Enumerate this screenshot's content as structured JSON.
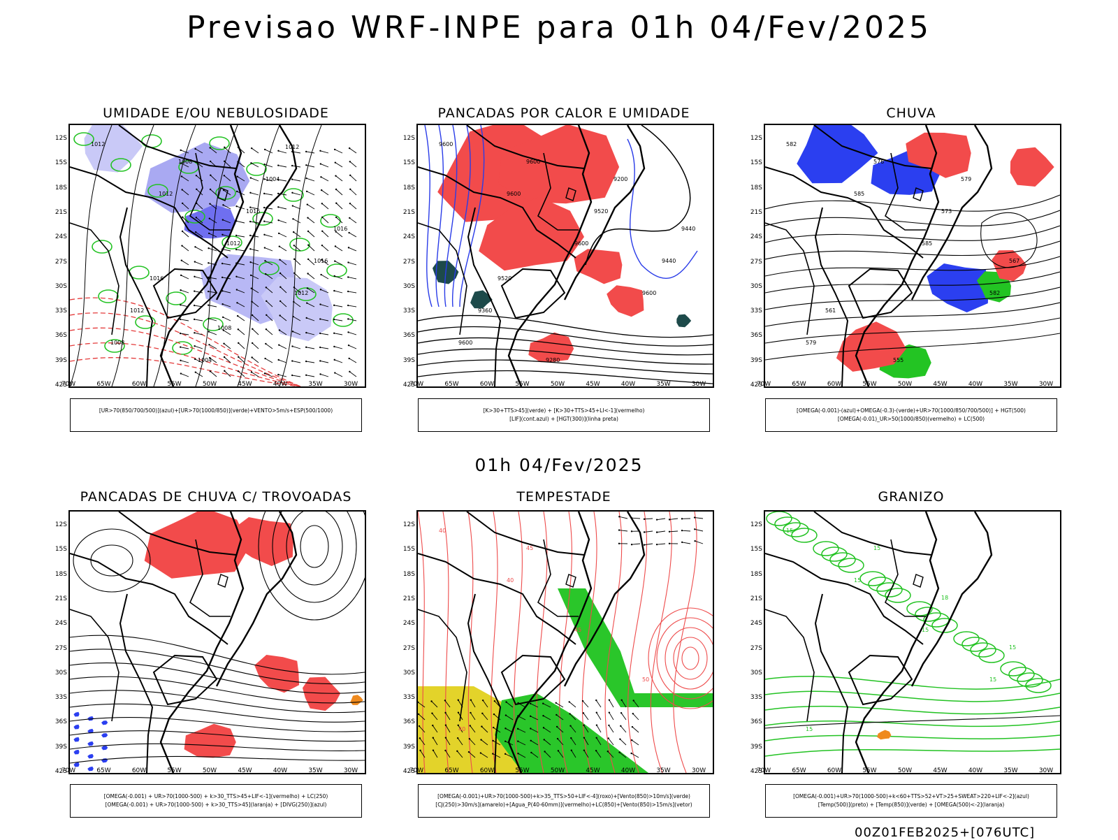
{
  "header": {
    "title": "Previsao WRF-INPE  para 01h 04/Fev/2025"
  },
  "middle_title": "01h 04/Fev/2025",
  "footer": "00Z01FEB2025+[076UTC]",
  "axes": {
    "lat_labels": [
      "12S",
      "15S",
      "18S",
      "21S",
      "24S",
      "27S",
      "30S",
      "33S",
      "36S",
      "39S",
      "42S"
    ],
    "lon_labels": [
      "70W",
      "65W",
      "60W",
      "55W",
      "50W",
      "45W",
      "40W",
      "35W",
      "30W"
    ]
  },
  "panels": [
    {
      "title": "UMIDADE E/OU NEBULOSIDADE",
      "legend": [
        "[UR>70(850/700/500)](azul)+[UR>70(1000/850)](verde)+VENTO>5m/s+ESP(500/1000)"
      ],
      "contour_labels": [
        "1012",
        "1012",
        "1012",
        "1012",
        "1008",
        "1008",
        "1016",
        "1016",
        "1012",
        "1004",
        "1004",
        "1016",
        "1016",
        "1008",
        "1012"
      ]
    },
    {
      "title": "PANCADAS POR CALOR E UMIDADE",
      "legend": [
        "[K>30+TTS>45](verde) + [K>30+TTS>45+LI<-1](vermelho)",
        "[LIF](cont.azul) + [HGT(300)](linha preta)"
      ],
      "contour_labels": [
        "9600",
        "9600",
        "9600",
        "9600",
        "9600",
        "9600",
        "9520",
        "9440",
        "9360",
        "9280",
        "9200",
        "9440",
        "9520"
      ]
    },
    {
      "title": "CHUVA",
      "legend": [
        "[OMEGA(-0.001)-(azul)+OMEGA(-0.3)-(verde)+UR>70(1000/850/700/500)] + HGT(500)",
        "[OMEGA(-0.01)_UR>50(1000/850)(vermelho) + LC(500)"
      ],
      "contour_labels": [
        "582",
        "585",
        "585",
        "582",
        "579",
        "576",
        "573",
        "567",
        "561",
        "555",
        "579"
      ]
    },
    {
      "title": "PANCADAS DE CHUVA C/ TROVOADAS",
      "legend": [
        "[OMEGA(-0.001) + UR>70(1000-500) + k>30_TTS>45+LIF<-1](vermelho) + LC(250)",
        "[OMEGA(-0.001) + UR>70(1000-500) + k>30_TTS>45](laranja) + [DIVG(250)](azul)"
      ],
      "contour_labels": []
    },
    {
      "title": "TEMPESTADE",
      "legend": [
        "[OMEGA(-0.001)+UR>70(1000-500)+k>35_TTS>50+LIF<-4](roxo)+[Vento(850)>10m/s](verde)",
        "[CJ(250)>30m/s](amarelo)+[Agua_P(40-60mm)](vermelho)+LC(850)+[Vento(850)>15m/s](vetor)"
      ],
      "contour_labels": [
        "40",
        "40",
        "45",
        "50",
        "40",
        "45"
      ]
    },
    {
      "title": "GRANIZO",
      "legend": [
        "[OMEGA(-0.001)+UR>70(1000-500)+k<60+TTS>52+VT>25+SWEAT>220+LIF<-2](azul)",
        "[Temp(500)](preto) + [Temp(850)](verde) + [OMEGA(500)<-2](laranja)"
      ],
      "contour_labels": [
        "15",
        "15",
        "15",
        "15",
        "15",
        "15",
        "18",
        "15"
      ]
    }
  ]
}
